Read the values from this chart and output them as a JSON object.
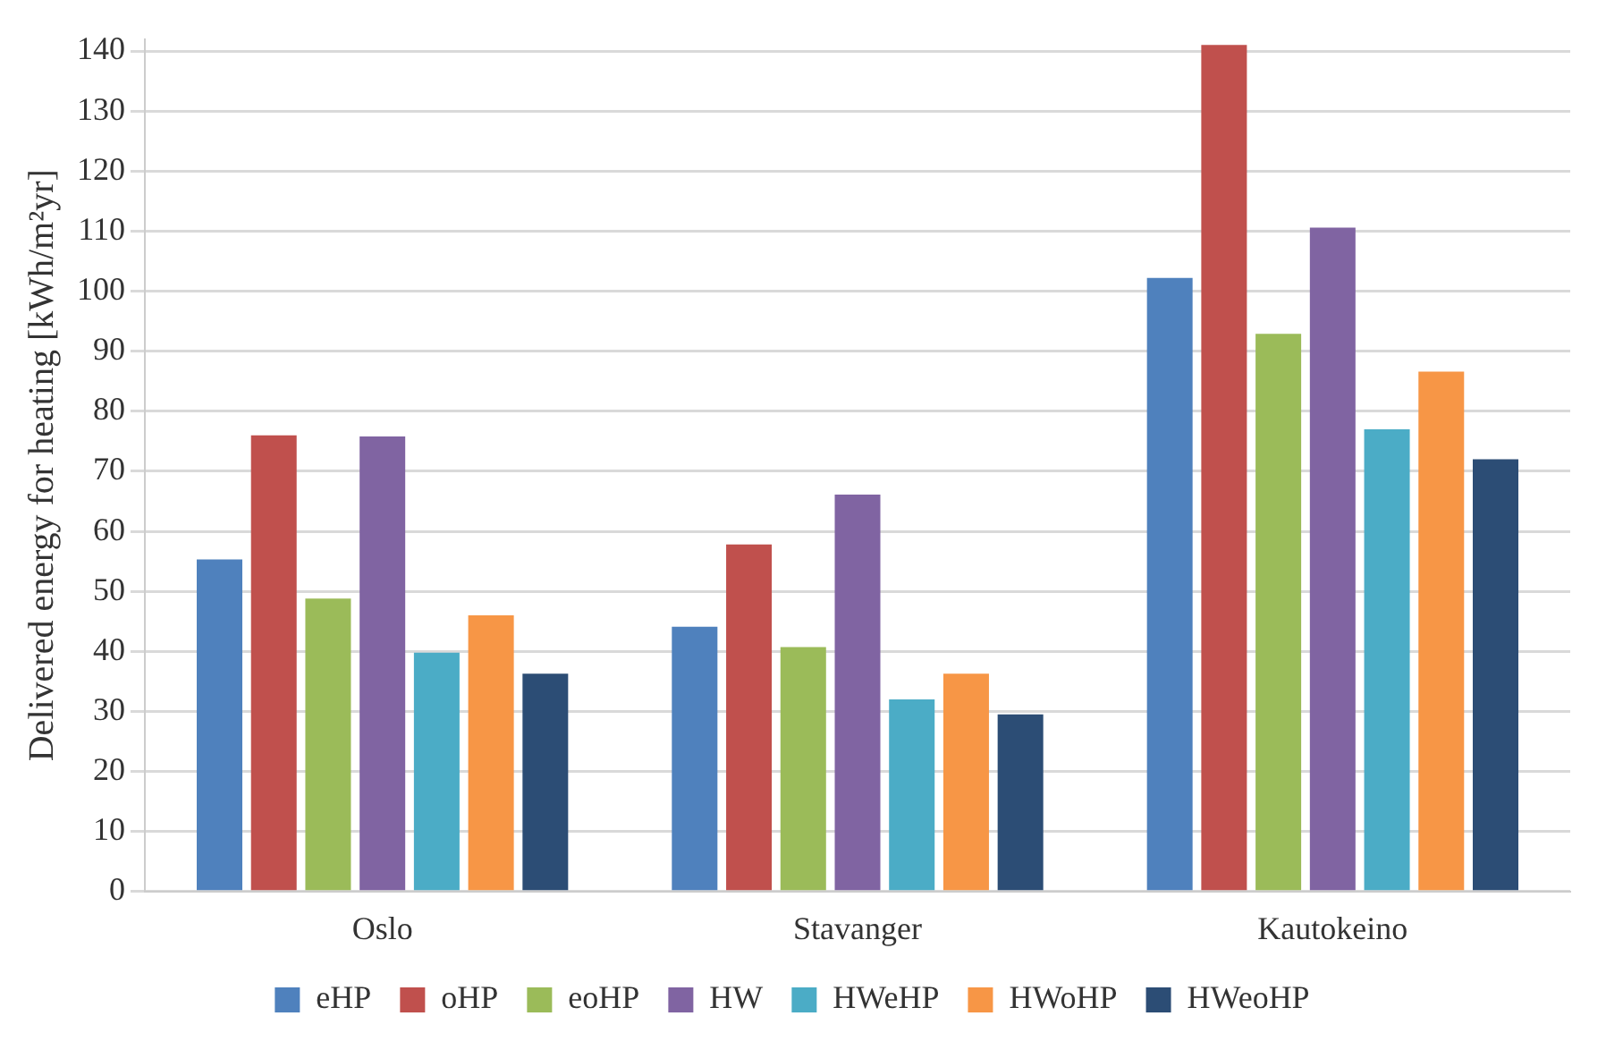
{
  "chart_data": {
    "type": "bar",
    "ylabel": "Delivered energy for heating [kWh/m²yr]",
    "categories": [
      "Oslo",
      "Stavanger",
      "Kautokeino"
    ],
    "series": [
      {
        "name": "eHP",
        "color": "#4f81bd",
        "values": [
          55.3,
          44.1,
          102.2
        ]
      },
      {
        "name": "oHP",
        "color": "#c0504d",
        "values": [
          76,
          57.8,
          141
        ]
      },
      {
        "name": "eoHP",
        "color": "#9bbb59",
        "values": [
          48.8,
          40.7,
          92.9
        ]
      },
      {
        "name": "HW",
        "color": "#8064a2",
        "values": [
          75.8,
          66.1,
          110.6
        ]
      },
      {
        "name": "HWeHP",
        "color": "#4bacc6",
        "values": [
          39.8,
          32,
          77
        ]
      },
      {
        "name": "HWoHP",
        "color": "#f79646",
        "values": [
          46,
          36.3,
          86.6
        ]
      },
      {
        "name": "HWeoHP",
        "color": "#2c4d75",
        "values": [
          36.3,
          29.5,
          72
        ]
      }
    ],
    "ylim": [
      0,
      142
    ],
    "yticks": [
      0,
      10,
      20,
      30,
      40,
      50,
      60,
      70,
      80,
      90,
      100,
      110,
      120,
      130,
      140
    ],
    "grid": "y",
    "legend": "bottom"
  }
}
